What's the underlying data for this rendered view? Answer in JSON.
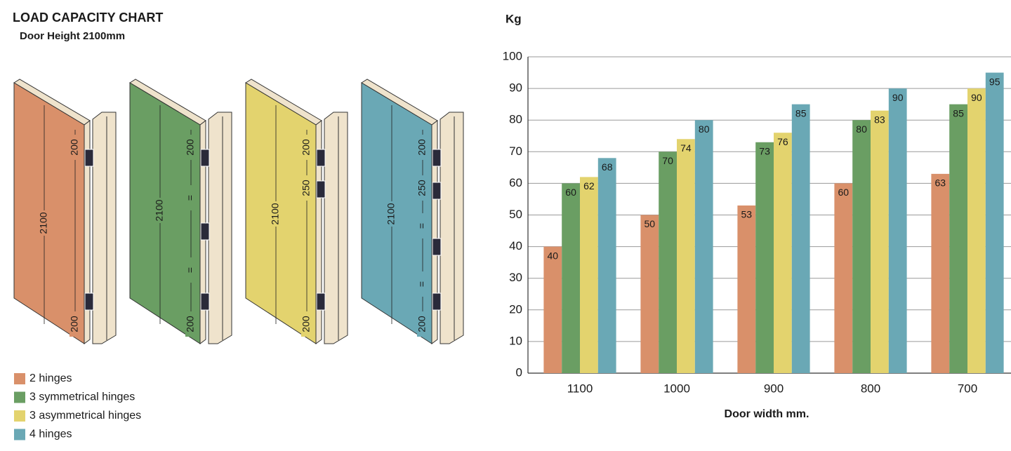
{
  "chart_data": {
    "type": "bar",
    "title": "LOAD CAPACITY CHART",
    "subtitle": "Door Height 2100mm",
    "y_label": "Kg",
    "x_label": "Door width mm.",
    "categories": [
      "1100",
      "1000",
      "900",
      "800",
      "700"
    ],
    "series": [
      {
        "name": "2 hinges",
        "color": "#d9906a",
        "values": [
          40,
          50,
          53,
          60,
          63
        ]
      },
      {
        "name": "3 symmetrical hinges",
        "color": "#6a9e63",
        "values": [
          60,
          70,
          73,
          80,
          85
        ]
      },
      {
        "name": "3 asymmetrical hinges",
        "color": "#e3d36e",
        "values": [
          62,
          74,
          76,
          83,
          90
        ]
      },
      {
        "name": "4 hinges",
        "color": "#6aa8b5",
        "values": [
          68,
          80,
          85,
          90,
          95
        ]
      }
    ],
    "ylim": [
      0,
      100
    ],
    "yticks": [
      0,
      10,
      20,
      30,
      40,
      50,
      60,
      70,
      80,
      90,
      100
    ],
    "grid": true,
    "illustrations": [
      {
        "labels": [
          "2100",
          "200",
          "200"
        ]
      },
      {
        "labels": [
          "2100",
          "200",
          "=",
          "=",
          "200"
        ]
      },
      {
        "labels": [
          "2100",
          "200",
          "250",
          "200"
        ]
      },
      {
        "labels": [
          "2100",
          "200",
          "250",
          "=",
          "=",
          "200"
        ]
      }
    ]
  }
}
